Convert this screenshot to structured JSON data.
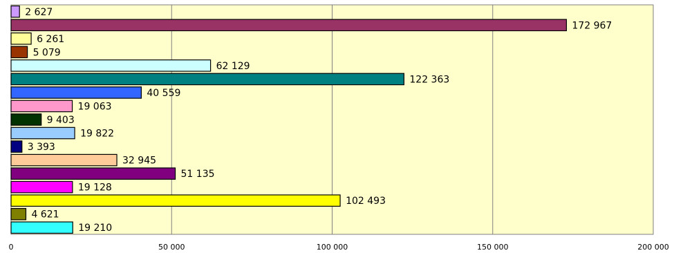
{
  "chart_data": {
    "type": "bar",
    "orientation": "horizontal",
    "categories": [
      "",
      "",
      "",
      "",
      "",
      "",
      "",
      "",
      "",
      "",
      "",
      "",
      "",
      "",
      "",
      "",
      ""
    ],
    "values": [
      2627,
      172967,
      6261,
      5079,
      62129,
      122363,
      40559,
      19063,
      9403,
      19822,
      3393,
      32945,
      51135,
      19128,
      102493,
      4621,
      19210
    ],
    "value_labels": [
      "2 627",
      "172 967",
      "6 261",
      "5 079",
      "62 129",
      "122 363",
      "40 559",
      "19 063",
      "9 403",
      "19 822",
      "3 393",
      "32 945",
      "51 135",
      "19 128",
      "102 493",
      "4 621",
      "19 210"
    ],
    "bar_colors": [
      "#cc99ff",
      "#993366",
      "#ffff99",
      "#993300",
      "#ccffff",
      "#008080",
      "#3366ff",
      "#ff99cc",
      "#003300",
      "#99ccff",
      "#000080",
      "#ffcc99",
      "#800080",
      "#ff00ff",
      "#ffff00",
      "#808000",
      "#33ffff"
    ],
    "xlim": [
      0,
      200000
    ],
    "x_ticks": [
      0,
      50000,
      100000,
      150000,
      200000
    ],
    "x_tick_labels": [
      "0",
      "50 000",
      "100 000",
      "150 000",
      "200 000"
    ],
    "plot_background": "#ffffcc",
    "grid": true,
    "gridlines": "vertical",
    "legend": "none",
    "title": "",
    "xlabel": "",
    "ylabel": ""
  }
}
